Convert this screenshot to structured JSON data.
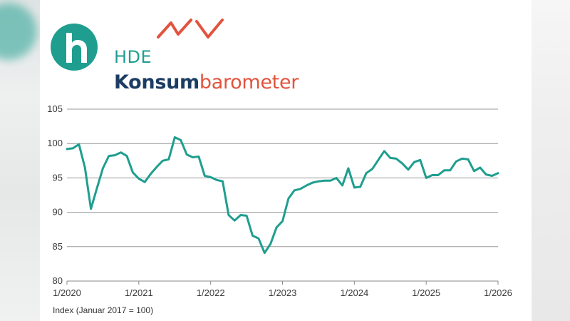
{
  "logo": {
    "hde": "HDE",
    "konsum": "Konsum",
    "barometer": "barometer"
  },
  "colors": {
    "accent_teal": "#1f9e8f",
    "brand_navy": "#1c3d63",
    "brand_red": "#e2533e"
  },
  "footnote": "Index (Januar 2017 = 100)",
  "chart_data": {
    "type": "line",
    "title": "",
    "xlabel": "",
    "ylabel": "",
    "ylim": [
      80,
      105
    ],
    "yticks": [
      80,
      85,
      90,
      95,
      100,
      105
    ],
    "xticks": [
      "1/2020",
      "1/2021",
      "1/2022",
      "1/2023",
      "1/2024",
      "1/2025",
      "1/2026"
    ],
    "grid": "horizontal",
    "series": [
      {
        "color": "#1f9e8f",
        "values": [
          99.2,
          99.3,
          99.9,
          96.5,
          90.5,
          93.5,
          96.4,
          98.2,
          98.3,
          98.7,
          98.2,
          95.8,
          94.9,
          94.4,
          95.6,
          96.6,
          97.5,
          97.7,
          100.9,
          100.5,
          98.4,
          98.0,
          98.1,
          95.3,
          95.1,
          94.7,
          94.5,
          89.6,
          88.8,
          89.6,
          89.5,
          86.6,
          86.2,
          84.1,
          85.4,
          87.8,
          88.7,
          92.0,
          93.2,
          93.4,
          93.9,
          94.3,
          94.5,
          94.6,
          94.6,
          95.0,
          93.9,
          96.4,
          93.6,
          93.7,
          95.7,
          96.3,
          97.6,
          98.9,
          97.9,
          97.8,
          97.1,
          96.2,
          97.3,
          97.6,
          95.0,
          95.4,
          95.4,
          96.1,
          96.1,
          97.4,
          97.8,
          97.7,
          96.0,
          96.5,
          95.5,
          95.3,
          95.7
        ]
      }
    ]
  }
}
